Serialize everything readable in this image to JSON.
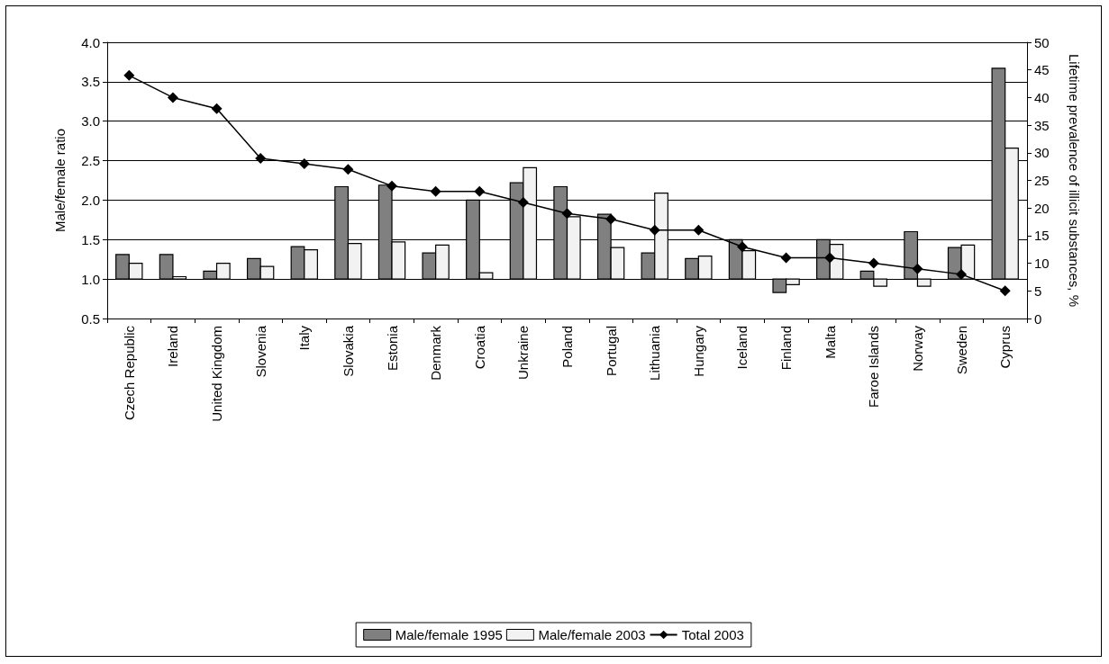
{
  "chart_data": {
    "type": "bar",
    "ylabel": "Male/female ratio",
    "y2label": "Lifetime prevalence of illicit substances, %",
    "categories": [
      "Czech Republic",
      "Ireland",
      "United Kingdom",
      "Slovenia",
      "Italy",
      "Slovakia",
      "Estonia",
      "Denmark",
      "Croatia",
      "Unkraine",
      "Poland",
      "Portugal",
      "Lithuania",
      "Hungary",
      "Iceland",
      "Finland",
      "Malta",
      "Faroe Islands",
      "Norway",
      "Sweden",
      "Cyprus"
    ],
    "series": [
      {
        "name": "Male/female 1995",
        "color": "#808080",
        "base": [
          1,
          1,
          1,
          1,
          1,
          1,
          1,
          1,
          1,
          1,
          1,
          1,
          1,
          1,
          1,
          1,
          1,
          1,
          1,
          1,
          1
        ],
        "values": [
          0.31,
          0.31,
          0.1,
          0.26,
          0.41,
          1.17,
          1.19,
          0.33,
          1.0,
          1.22,
          1.17,
          0.82,
          0.33,
          0.26,
          0.5,
          -0.17,
          0.5,
          0.1,
          0.6,
          0.4,
          2.67
        ]
      },
      {
        "name": "Male/female 2003",
        "color": "#f2f2f2",
        "base": [
          1,
          1,
          1,
          1,
          1,
          1,
          1,
          1,
          1,
          1,
          1,
          1,
          1,
          1,
          1,
          1,
          1,
          1,
          1,
          1,
          1
        ],
        "values": [
          0.2,
          0.03,
          0.2,
          0.16,
          0.37,
          0.45,
          0.47,
          0.43,
          0.08,
          1.41,
          0.79,
          0.4,
          1.09,
          0.29,
          0.36,
          -0.07,
          0.44,
          -0.09,
          -0.09,
          0.43,
          1.66
        ]
      },
      {
        "name": "Total 2003",
        "type": "line",
        "axis": "y2",
        "color": "#000000",
        "marker": "diamond",
        "values": [
          44,
          40,
          38,
          29,
          28,
          27,
          24,
          23,
          23,
          21,
          19,
          18,
          16,
          16,
          13,
          11,
          11,
          10,
          9,
          8,
          5
        ]
      }
    ],
    "ylim": [
      0.5,
      4
    ],
    "yticks": [
      {
        "value": 0.5,
        "label": "0.5"
      },
      {
        "value": 1,
        "label": "1.0"
      },
      {
        "value": 1.5,
        "label": "1.5"
      },
      {
        "value": 2,
        "label": "2.0"
      },
      {
        "value": 2.5,
        "label": "2.5"
      },
      {
        "value": 3,
        "label": "3.0"
      },
      {
        "value": 3.5,
        "label": "3.5"
      },
      {
        "value": 4,
        "label": "4.0"
      }
    ],
    "y2lim": [
      0,
      50
    ],
    "y2ticks": [
      0,
      5,
      10,
      15,
      20,
      25,
      30,
      35,
      40,
      45,
      50
    ],
    "grid": "y",
    "legend": "bottom"
  }
}
